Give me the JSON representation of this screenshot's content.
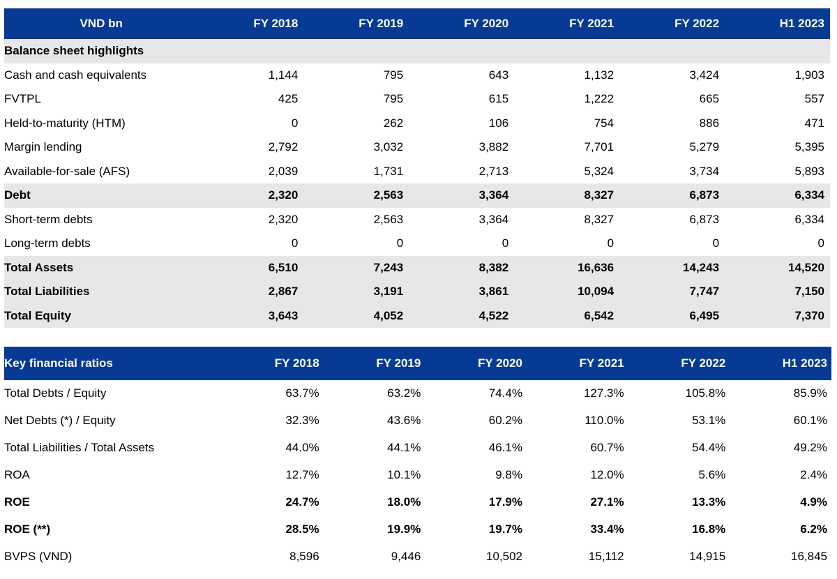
{
  "balance": {
    "headers": [
      "VND bn",
      "FY 2018",
      "FY 2019",
      "FY 2020",
      "FY 2021",
      "FY 2022",
      "H1 2023"
    ],
    "section_title": "Balance sheet highlights",
    "rows": [
      {
        "label": "Cash and cash equivalents",
        "values": [
          "1,144",
          "795",
          "643",
          "1,132",
          "3,424",
          "1,903"
        ]
      },
      {
        "label": "FVTPL",
        "values": [
          "425",
          "795",
          "615",
          "1,222",
          "665",
          "557"
        ]
      },
      {
        "label": "Held-to-maturity (HTM)",
        "values": [
          "0",
          "262",
          "106",
          "754",
          "886",
          "471"
        ]
      },
      {
        "label": "Margin lending",
        "values": [
          "2,792",
          "3,032",
          "3,882",
          "7,701",
          "5,279",
          "5,395"
        ]
      },
      {
        "label": "Available-for-sale (AFS)",
        "values": [
          "2,039",
          "1,731",
          "2,713",
          "5,324",
          "3,734",
          "5,893"
        ]
      },
      {
        "label": "Debt",
        "values": [
          "2,320",
          "2,563",
          "3,364",
          "8,327",
          "6,873",
          "6,334"
        ]
      },
      {
        "label": "Short-term debts",
        "values": [
          "2,320",
          "2,563",
          "3,364",
          "8,327",
          "6,873",
          "6,334"
        ]
      },
      {
        "label": "Long-term debts",
        "values": [
          "0",
          "0",
          "0",
          "0",
          "0",
          "0"
        ]
      },
      {
        "label": "Total Assets",
        "values": [
          "6,510",
          "7,243",
          "8,382",
          "16,636",
          "14,243",
          "14,520"
        ]
      },
      {
        "label": "Total Liabilities",
        "values": [
          "2,867",
          "3,191",
          "3,861",
          "10,094",
          "7,747",
          "7,150"
        ]
      },
      {
        "label": "Total Equity",
        "values": [
          "3,643",
          "4,052",
          "4,522",
          "6,542",
          "6,495",
          "7,370"
        ]
      }
    ]
  },
  "ratios": {
    "headers": [
      "Key financial ratios",
      "FY 2018",
      "FY 2019",
      "FY 2020",
      "FY 2021",
      "FY 2022",
      "H1 2023"
    ],
    "rows": [
      {
        "label": "Total Debts / Equity",
        "values": [
          "63.7%",
          "63.2%",
          "74.4%",
          "127.3%",
          "105.8%",
          "85.9%"
        ]
      },
      {
        "label": "Net Debts (*) / Equity",
        "values": [
          "32.3%",
          "43.6%",
          "60.2%",
          "110.0%",
          "53.1%",
          "60.1%"
        ]
      },
      {
        "label": "Total Liabilities / Total Assets",
        "values": [
          "44.0%",
          "44.1%",
          "46.1%",
          "60.7%",
          "54.4%",
          "49.2%"
        ]
      },
      {
        "label": "ROA",
        "values": [
          "12.7%",
          "10.1%",
          "9.8%",
          "12.0%",
          "5.6%",
          "2.4%"
        ]
      },
      {
        "label": "ROE",
        "values": [
          "24.7%",
          "18.0%",
          "17.9%",
          "27.1%",
          "13.3%",
          "4.9%"
        ]
      },
      {
        "label": "ROE (**)",
        "values": [
          "28.5%",
          "19.9%",
          "19.7%",
          "33.4%",
          "16.8%",
          "6.2%"
        ]
      },
      {
        "label": "BVPS (VND)",
        "values": [
          "8,596",
          "9,446",
          "10,502",
          "15,112",
          "14,915",
          "16,845"
        ]
      }
    ]
  }
}
